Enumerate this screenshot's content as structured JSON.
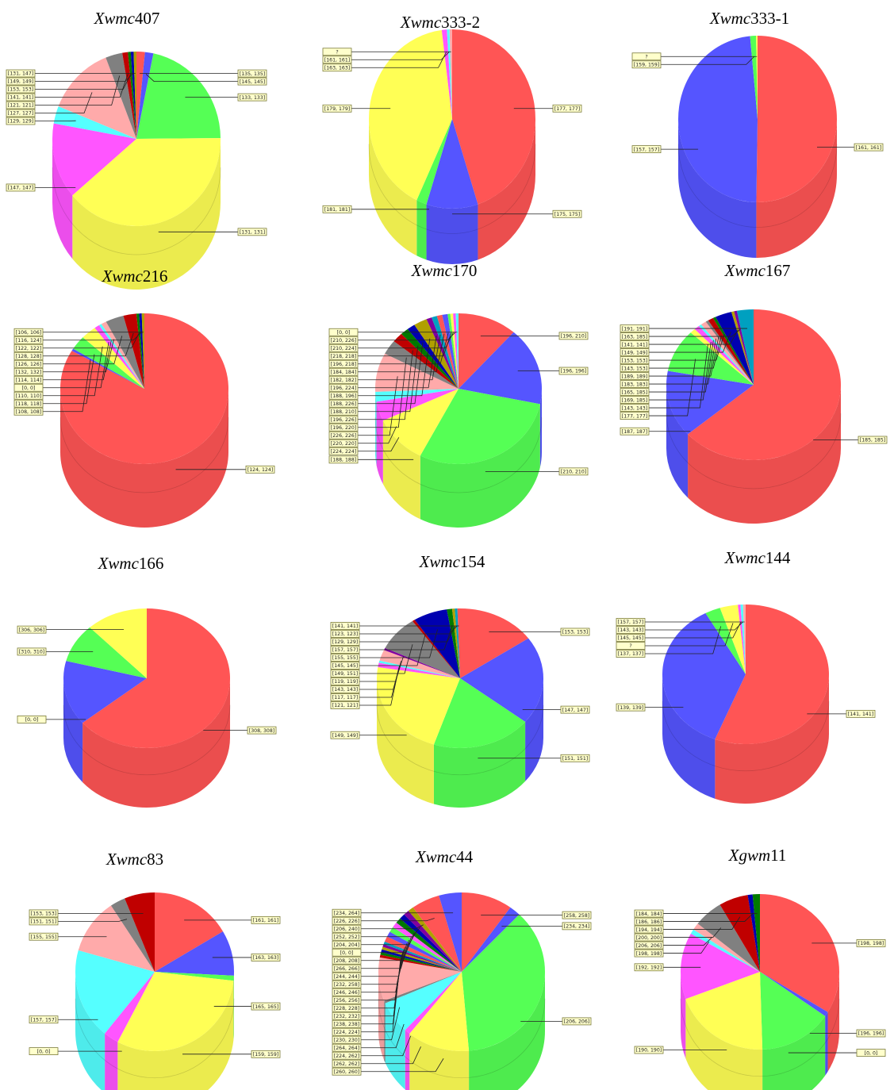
{
  "colors": {
    "red": "#ff5555",
    "blue": "#5555ff",
    "green": "#55ff55",
    "yellow": "#ffff55",
    "magenta": "#ff55ff",
    "cyan": "#55ffff",
    "pink": "#ffaaaa",
    "gray": "#808080",
    "darkred": "#c00000",
    "darkgreen": "#007a00",
    "darkblue": "#0000b0",
    "olive": "#b0a000",
    "purple": "#8000a0",
    "teal": "#00a0c0"
  },
  "chart_data": [
    {
      "type": "pie",
      "title": {
        "italic": "Xwmc",
        "rest": "407"
      },
      "slices": [
        {
          "label": "[135, 135]",
          "value": 1.5,
          "color": "red"
        },
        {
          "label": "[145, 145]",
          "value": 1.5,
          "color": "blue"
        },
        {
          "label": "[133, 133]",
          "value": 20,
          "color": "green"
        },
        {
          "label": "[131, 131]",
          "value": 36,
          "color": "yellow"
        },
        {
          "label": "[147, 147]",
          "value": 13,
          "color": "magenta"
        },
        {
          "label": "[129, 129]",
          "value": 3,
          "color": "cyan"
        },
        {
          "label": "[127, 127]",
          "value": 12,
          "color": "pink"
        },
        {
          "label": "[121, 121]",
          "value": 3,
          "color": "gray"
        },
        {
          "label": "[141, 141]",
          "value": 1,
          "color": "darkred"
        },
        {
          "label": "[153, 153]",
          "value": 0.5,
          "color": "darkgreen"
        },
        {
          "label": "[149, 149]",
          "value": 0.5,
          "color": "darkblue"
        },
        {
          "label": "[131, 147]",
          "value": 0.5,
          "color": "olive"
        }
      ]
    },
    {
      "type": "pie",
      "title": {
        "italic": "Xwmc",
        "rest": "333-2"
      },
      "slices": [
        {
          "label": "[177, 177]",
          "value": 45,
          "color": "red"
        },
        {
          "label": "[175, 175]",
          "value": 10,
          "color": "blue"
        },
        {
          "label": "[181, 181]",
          "value": 2,
          "color": "green"
        },
        {
          "label": "[179, 179]",
          "value": 41,
          "color": "yellow"
        },
        {
          "label": "[163, 163]",
          "value": 1,
          "color": "magenta"
        },
        {
          "label": "[161, 161]",
          "value": 0.5,
          "color": "cyan"
        },
        {
          "label": "?",
          "value": 0.5,
          "color": "pink"
        }
      ]
    },
    {
      "type": "pie",
      "title": {
        "italic": "Xwmc",
        "rest": "333-1"
      },
      "slices": [
        {
          "label": "[161, 161]",
          "value": 50,
          "color": "red"
        },
        {
          "label": "[157, 157]",
          "value": 48,
          "color": "blue"
        },
        {
          "label": "[159, 159]",
          "value": 1.2,
          "color": "green"
        },
        {
          "label": "?",
          "value": 0.3,
          "color": "yellow"
        }
      ]
    },
    {
      "type": "pie",
      "title": {
        "italic": "Xwmc",
        "rest": "216"
      },
      "slices": [
        {
          "label": "[124, 124]",
          "value": 83,
          "color": "red"
        },
        {
          "label": "[108, 108]",
          "value": 0.5,
          "color": "blue"
        },
        {
          "label": "[118, 118]",
          "value": 3,
          "color": "green"
        },
        {
          "label": "[110, 110]",
          "value": 3,
          "color": "yellow"
        },
        {
          "label": "[0, 0]",
          "value": 1,
          "color": "magenta"
        },
        {
          "label": "[114, 114]",
          "value": 0.5,
          "color": "cyan"
        },
        {
          "label": "[132, 132]",
          "value": 1,
          "color": "pink"
        },
        {
          "label": "[126, 126]",
          "value": 3.5,
          "color": "gray"
        },
        {
          "label": "[128, 128]",
          "value": 2.5,
          "color": "darkred"
        },
        {
          "label": "[122, 122]",
          "value": 0.5,
          "color": "darkgreen"
        },
        {
          "label": "[116, 124]",
          "value": 0.5,
          "color": "darkblue"
        },
        {
          "label": "[106, 106]",
          "value": 0.5,
          "color": "olive"
        }
      ]
    },
    {
      "type": "pie",
      "title": {
        "italic": "Xwmc",
        "rest": "170"
      },
      "slices": [
        {
          "label": "[196, 210]",
          "value": 11,
          "color": "red"
        },
        {
          "label": "[196, 196]",
          "value": 16,
          "color": "blue"
        },
        {
          "label": "[210, 210]",
          "value": 28,
          "color": "green"
        },
        {
          "label": "[188, 188]",
          "value": 10,
          "color": "yellow"
        },
        {
          "label": "[224, 224]",
          "value": 4,
          "color": "magenta"
        },
        {
          "label": "[220, 220]",
          "value": 2,
          "color": "cyan"
        },
        {
          "label": "[226, 226]",
          "value": 8,
          "color": "pink"
        },
        {
          "label": "[196, 220]",
          "value": 3,
          "color": "gray"
        },
        {
          "label": "[196, 226]",
          "value": 2,
          "color": "darkred"
        },
        {
          "label": "[188, 210]",
          "value": 1.5,
          "color": "darkgreen"
        },
        {
          "label": "[188, 226]",
          "value": 1.5,
          "color": "darkblue"
        },
        {
          "label": "[188, 196]",
          "value": 2.5,
          "color": "olive"
        },
        {
          "label": "[196, 224]",
          "value": 1,
          "color": "purple"
        },
        {
          "label": "[182, 182]",
          "value": 1,
          "color": "teal"
        },
        {
          "label": "[184, 184]",
          "value": 1,
          "color": "red"
        },
        {
          "label": "[196, 218]",
          "value": 1,
          "color": "blue"
        },
        {
          "label": "[218, 218]",
          "value": 0.5,
          "color": "green"
        },
        {
          "label": "[210, 224]",
          "value": 0.5,
          "color": "yellow"
        },
        {
          "label": "[210, 226]",
          "value": 0.5,
          "color": "magenta"
        },
        {
          "label": "[0, 0]",
          "value": 0.5,
          "color": "cyan"
        }
      ]
    },
    {
      "type": "pie",
      "title": {
        "italic": "Xwmc",
        "rest": "167"
      },
      "slices": [
        {
          "label": "[185, 185]",
          "value": 62,
          "color": "red"
        },
        {
          "label": "[187, 187]",
          "value": 14,
          "color": "blue"
        },
        {
          "label": "[177, 177]",
          "value": 9,
          "color": "green"
        },
        {
          "label": "[143, 143]",
          "value": 1,
          "color": "yellow"
        },
        {
          "label": "[169, 185]",
          "value": 1,
          "color": "magenta"
        },
        {
          "label": "[165, 185]",
          "value": 0.5,
          "color": "cyan"
        },
        {
          "label": "[183, 183]",
          "value": 1,
          "color": "pink"
        },
        {
          "label": "[189, 189]",
          "value": 0.5,
          "color": "gray"
        },
        {
          "label": "[143, 153]",
          "value": 1,
          "color": "darkred"
        },
        {
          "label": "[153, 153]",
          "value": 0.5,
          "color": "darkgreen"
        },
        {
          "label": "[149, 149]",
          "value": 3,
          "color": "darkblue"
        },
        {
          "label": "[141, 141]",
          "value": 0.5,
          "color": "olive"
        },
        {
          "label": "[163, 185]",
          "value": 0.5,
          "color": "purple"
        },
        {
          "label": "[191, 191]",
          "value": 3,
          "color": "teal"
        }
      ]
    },
    {
      "type": "pie",
      "title": {
        "italic": "Xwmc",
        "rest": "166"
      },
      "slices": [
        {
          "label": "[308, 308]",
          "value": 64,
          "color": "red"
        },
        {
          "label": "[0, 0]",
          "value": 15,
          "color": "blue"
        },
        {
          "label": "[310, 310]",
          "value": 9,
          "color": "green"
        },
        {
          "label": "[306, 306]",
          "value": 12,
          "color": "yellow"
        }
      ]
    },
    {
      "type": "pie",
      "title": {
        "italic": "Xwmc",
        "rest": "154"
      },
      "slices": [
        {
          "label": "[153, 153]",
          "value": 15,
          "color": "red"
        },
        {
          "label": "[147, 147]",
          "value": 20,
          "color": "blue"
        },
        {
          "label": "[151, 151]",
          "value": 19,
          "color": "green"
        },
        {
          "label": "[149, 149]",
          "value": 22,
          "color": "yellow"
        },
        {
          "label": "[121, 121]",
          "value": 1,
          "color": "magenta"
        },
        {
          "label": "[117, 117]",
          "value": 0.5,
          "color": "cyan"
        },
        {
          "label": "[143, 143]",
          "value": 2.5,
          "color": "pink"
        },
        {
          "label": "[119, 119]",
          "value": 0.5,
          "color": "purple"
        },
        {
          "label": "[149, 151]",
          "value": 8,
          "color": "gray"
        },
        {
          "label": "[145, 145]",
          "value": 0.5,
          "color": "darkred"
        },
        {
          "label": "[155, 155]",
          "value": 6.5,
          "color": "darkblue"
        },
        {
          "label": "[157, 157]",
          "value": 1,
          "color": "darkgreen"
        },
        {
          "label": "[129, 129]",
          "value": 0.5,
          "color": "olive"
        },
        {
          "label": "[123, 123]",
          "value": 0.5,
          "color": "teal"
        },
        {
          "label": "[141, 141]",
          "value": 0.5,
          "color": "red"
        }
      ]
    },
    {
      "type": "pie",
      "title": {
        "italic": "Xwmc",
        "rest": "144"
      },
      "slices": [
        {
          "label": "[141, 141]",
          "value": 56,
          "color": "red"
        },
        {
          "label": "[139, 139]",
          "value": 36,
          "color": "blue"
        },
        {
          "label": "[137, 137]",
          "value": 3,
          "color": "green"
        },
        {
          "label": "?",
          "value": 3.5,
          "color": "yellow"
        },
        {
          "label": "[145, 145]",
          "value": 0.5,
          "color": "magenta"
        },
        {
          "label": "[143, 143]",
          "value": 0.5,
          "color": "cyan"
        },
        {
          "label": "[157, 157]",
          "value": 0.5,
          "color": "pink"
        }
      ]
    },
    {
      "type": "pie",
      "title": {
        "italic": "Xwmc",
        "rest": "83"
      },
      "slices": [
        {
          "label": "[161, 161]",
          "value": 16,
          "color": "red"
        },
        {
          "label": "[163, 163]",
          "value": 9,
          "color": "blue"
        },
        {
          "label": "[165, 165]",
          "value": 1,
          "color": "green"
        },
        {
          "label": "[159, 159]",
          "value": 30,
          "color": "yellow"
        },
        {
          "label": "[0, 0]",
          "value": 3,
          "color": "magenta"
        },
        {
          "label": "[157, 157]",
          "value": 18,
          "color": "cyan"
        },
        {
          "label": "[155, 155]",
          "value": 11,
          "color": "pink"
        },
        {
          "label": "[151, 151]",
          "value": 3,
          "color": "gray"
        },
        {
          "label": "[153, 153]",
          "value": 6,
          "color": "darkred"
        }
      ]
    },
    {
      "type": "pie",
      "title": {
        "italic": "Xwmc",
        "rest": "44"
      },
      "slices": [
        {
          "label": "[258, 258]",
          "value": 9,
          "color": "red"
        },
        {
          "label": "[234, 234]",
          "value": 2,
          "color": "blue"
        },
        {
          "label": "[206, 206]",
          "value": 33,
          "color": "green"
        },
        {
          "label": "[260, 260]",
          "value": 11,
          "color": "yellow"
        },
        {
          "label": "[262, 262]",
          "value": 1,
          "color": "magenta"
        },
        {
          "label": "[224, 262]",
          "value": 6,
          "color": "cyan"
        },
        {
          "label": "[264, 264]",
          "value": 0.5,
          "color": "gray"
        },
        {
          "label": "[230, 230]",
          "value": 8,
          "color": "pink"
        },
        {
          "label": "[224, 224]",
          "value": 0.5,
          "color": "darkred"
        },
        {
          "label": "[238, 238]",
          "value": 0.5,
          "color": "darkgreen"
        },
        {
          "label": "[232, 232]",
          "value": 0.5,
          "color": "darkblue"
        },
        {
          "label": "[228, 228]",
          "value": 0.5,
          "color": "olive"
        },
        {
          "label": "[256, 256]",
          "value": 0.5,
          "color": "purple"
        },
        {
          "label": "[246, 246]",
          "value": 0.5,
          "color": "teal"
        },
        {
          "label": "[232, 258]",
          "value": 1,
          "color": "red"
        },
        {
          "label": "[244, 244]",
          "value": 1,
          "color": "blue"
        },
        {
          "label": "[266, 266]",
          "value": 1,
          "color": "green"
        },
        {
          "label": "[208, 208]",
          "value": 1,
          "color": "magenta"
        },
        {
          "label": "[0, 0]",
          "value": 1,
          "color": "darkgreen"
        },
        {
          "label": "[204, 204]",
          "value": 1,
          "color": "darkblue"
        },
        {
          "label": "[252, 252]",
          "value": 1,
          "color": "purple"
        },
        {
          "label": "[206, 240]",
          "value": 1,
          "color": "olive"
        },
        {
          "label": "[226, 226]",
          "value": 5,
          "color": "red"
        },
        {
          "label": "[234, 264]",
          "value": 4,
          "color": "blue"
        }
      ]
    },
    {
      "type": "pie",
      "title": {
        "italic": "Xgwm",
        "rest": "11"
      },
      "slices": [
        {
          "label": "[198, 198]",
          "value": 34,
          "color": "red"
        },
        {
          "label": "[196, 196]",
          "value": 1,
          "color": "blue"
        },
        {
          "label": "[0, 0]",
          "value": 15,
          "color": "green"
        },
        {
          "label": "[190, 190]",
          "value": 20,
          "color": "yellow"
        },
        {
          "label": "[192, 192]",
          "value": 14,
          "color": "magenta"
        },
        {
          "label": "[198, 198]",
          "value": 1,
          "color": "cyan"
        },
        {
          "label": "[206, 206]",
          "value": 1.5,
          "color": "pink"
        },
        {
          "label": "[200, 200]",
          "value": 6,
          "color": "gray"
        },
        {
          "label": "[194, 194]",
          "value": 6,
          "color": "darkred"
        },
        {
          "label": "[186, 186]",
          "value": 1,
          "color": "darkblue"
        },
        {
          "label": "[184, 184]",
          "value": 1.5,
          "color": "darkgreen"
        }
      ]
    }
  ]
}
